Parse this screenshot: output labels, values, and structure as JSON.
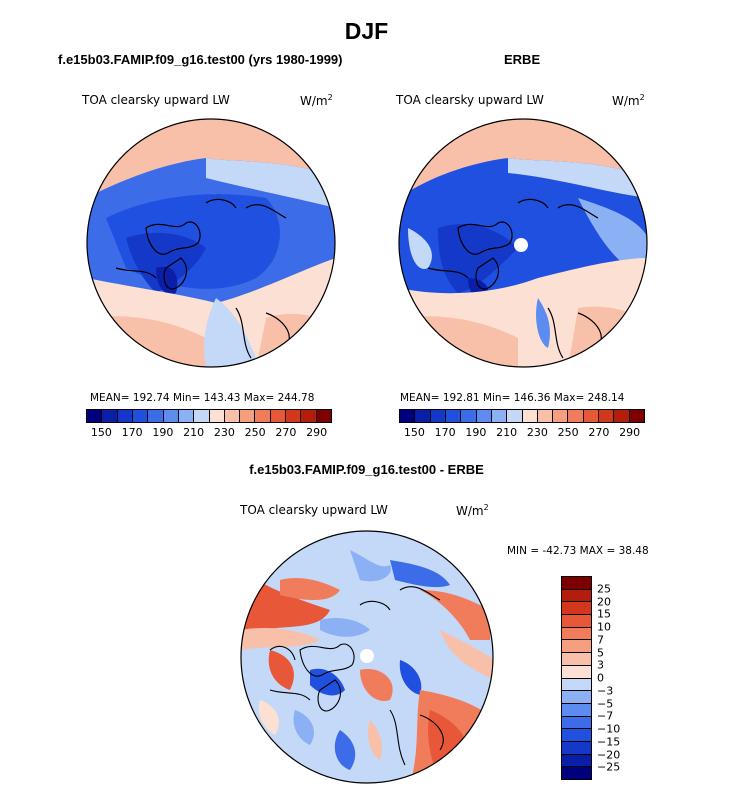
{
  "figure": {
    "title": "DJF"
  },
  "panels": [
    {
      "title": "f.e15b03.FAMIP.f09_g16.test00 (yrs 1980-1999)",
      "variable": "TOA clearsky upward LW",
      "units": "W/m",
      "units_sup": "2",
      "stats": "MEAN= 192.74   Min= 143.43   Max= 244.78",
      "colorbar_labels": [
        "150",
        "170",
        "190",
        "210",
        "230",
        "250",
        "270",
        "290"
      ]
    },
    {
      "title": "ERBE",
      "variable": "TOA clearsky upward LW",
      "units": "W/m",
      "units_sup": "2",
      "stats": "MEAN= 192.81   Min= 146.36   Max= 248.14",
      "colorbar_labels": [
        "150",
        "170",
        "190",
        "210",
        "230",
        "250",
        "270",
        "290"
      ]
    },
    {
      "title": "f.e15b03.FAMIP.f09_g16.test00 - ERBE",
      "variable": "TOA clearsky upward LW",
      "units": "W/m",
      "units_sup": "2",
      "stats": "MIN = -42.73  MAX =   38.48",
      "colorbar_labels": [
        "25",
        "20",
        "15",
        "10",
        "7",
        "5",
        "3",
        "0",
        "−3",
        "−5",
        "−7",
        "−10",
        "−15",
        "−20",
        "−25"
      ]
    }
  ],
  "colors": {
    "abs_scale": [
      "#00007c",
      "#0a1ea8",
      "#1438c8",
      "#2050e0",
      "#3c6ce8",
      "#5c8cf0",
      "#8cb0f4",
      "#c4d8f8",
      "#fce0d4",
      "#f8c0a8",
      "#f4a080",
      "#f07c5c",
      "#e85838",
      "#d4381c",
      "#b41c0c",
      "#7c0000"
    ],
    "diff_scale": [
      "#7c0000",
      "#b41c0c",
      "#d4381c",
      "#e85838",
      "#f07c5c",
      "#f4a080",
      "#f8c0a8",
      "#fce0d4",
      "#c4d8f8",
      "#8cb0f4",
      "#5c8cf0",
      "#3c6ce8",
      "#2050e0",
      "#1438c8",
      "#0a1ea8",
      "#00007c"
    ]
  }
}
